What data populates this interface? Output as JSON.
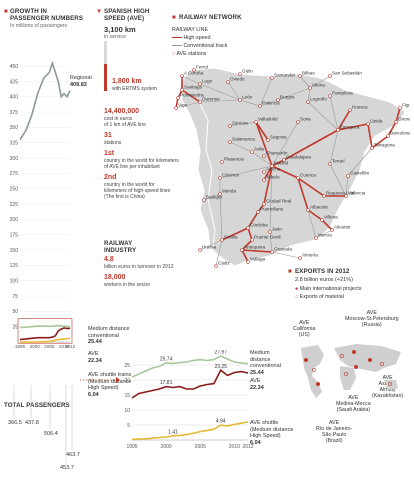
{
  "colors": {
    "accent": "#c0392b",
    "grey_line": "#8a9a90",
    "dark_red": "#8b1a1a",
    "gold": "#e6b833",
    "green": "#a7c79a",
    "map_land": "#d6d6d6",
    "map_sea": "#ffffff"
  },
  "left": {
    "title_line1": "GROWTH IN",
    "title_line2": "PASSENGER NUMBERS",
    "subtitle": "In millions of passengers",
    "regional_label": "Regional",
    "regional_value": "409.83",
    "md_label": "Medium distance",
    "md_label2": "conventional",
    "md_value": "25.44",
    "ave_label": "AVE",
    "ave_value": "22.34",
    "shuttle_label": "AVE shuttle trains",
    "shuttle_label2": "(Medium distance",
    "shuttle_label3": "High Speed)",
    "shuttle_value": "6.04",
    "total_title": "TOTAL PASSENGERS",
    "totals": [
      "366.5",
      "437.8",
      "506.4",
      "453.7",
      "463.7"
    ]
  },
  "chart_data": [
    {
      "type": "line",
      "title": "GROWTH IN PASSENGER NUMBERS",
      "subtitle": "In millions of passengers",
      "x": [
        1995,
        1997,
        1999,
        2001,
        2003,
        2005,
        2006,
        2007,
        2008,
        2009,
        2010,
        2011,
        2012
      ],
      "xticks": [
        "1995",
        "2000",
        "2005",
        "2010",
        "2012"
      ],
      "yticks": [
        25,
        50,
        75,
        100,
        125,
        150,
        175,
        200,
        225,
        250,
        275,
        300,
        325,
        350,
        375,
        400,
        425,
        450
      ],
      "ylim": [
        0,
        460
      ],
      "series": [
        {
          "name": "Regional",
          "values": [
            330,
            345,
            370,
            405,
            430,
            440,
            455,
            440,
            425,
            400,
            405,
            400,
            409.83
          ]
        },
        {
          "name": "Medium distance conventional",
          "values": [
            24,
            24,
            25,
            26,
            26,
            25.5,
            26,
            26,
            27,
            26,
            26,
            25.5,
            25.44
          ]
        },
        {
          "name": "AVE",
          "values": [
            4,
            5,
            6,
            7,
            7,
            7,
            8,
            10,
            18,
            21,
            23,
            22,
            22.34
          ]
        },
        {
          "name": "AVE shuttle trains (Medium distance High Speed)",
          "values": [
            0,
            0,
            0,
            0,
            0.5,
            1,
            2,
            3,
            4,
            4.5,
            5,
            5.5,
            6.04
          ]
        }
      ]
    },
    {
      "type": "line",
      "x": [
        1995,
        1996,
        1997,
        1998,
        1999,
        2000,
        2001,
        2002,
        2003,
        2004,
        2005,
        2006,
        2007,
        2008,
        2009,
        2010,
        2011,
        2012
      ],
      "xticks": [
        "1995",
        "2000",
        "2005",
        "2010",
        "2012"
      ],
      "yticks": [
        5,
        10,
        15,
        20,
        25
      ],
      "ylim": [
        0,
        28
      ],
      "annotations": [
        "25.74",
        "27.97",
        "17.81",
        "23.25",
        "1.41",
        "4.94"
      ],
      "series": [
        {
          "name": "Medium distance conventional",
          "values": [
            21,
            22,
            23,
            24,
            24.5,
            25.74,
            25.5,
            25.8,
            26,
            26.5,
            26.8,
            26.5,
            26.8,
            27.97,
            27,
            26,
            25.7,
            25.44
          ]
        },
        {
          "name": "AVE",
          "values": [
            14,
            15.5,
            16,
            16.5,
            17,
            17.81,
            17.5,
            17.8,
            17,
            17,
            18,
            18.5,
            18.8,
            23.25,
            21.5,
            22.5,
            22.8,
            22.34
          ]
        },
        {
          "name": "AVE shuttle",
          "values": [
            0.2,
            0.3,
            0.4,
            0.6,
            0.8,
            1.0,
            1.41,
            1.5,
            1.8,
            2.3,
            2.8,
            3.2,
            3.6,
            4.94,
            4.7,
            5.2,
            5.6,
            6.04
          ]
        }
      ]
    }
  ],
  "mid": {
    "title_line1": "SPANISH HIGH",
    "title_line2": "SPEED (AVE)",
    "km": "3,100 km",
    "km_sub": "in service",
    "ertms_km": "1,800 km",
    "ertms_sub": "with ERTMS system",
    "cost": "14,400,000",
    "cost_sub1": "cost in euros",
    "cost_sub2": "of 1 km of AVE line",
    "stations": "31",
    "stations_sub": "stations",
    "rank1": "1st",
    "rank1_sub1": "country in the world for kilometers",
    "rank1_sub2": "of AVE line per inhabitant",
    "rank2": "2nd",
    "rank2_sub1": "country in the world for",
    "rank2_sub2": "kilometers of high-speed lines",
    "rank2_sub3": "(The first is  China)",
    "industry_title1": "RAILWAY",
    "industry_title2": "INDUSTRY",
    "turnover": "4.8",
    "turnover_sub": "billion euros in turnover in 2012",
    "workers": "18,000",
    "workers_sub": "workers in the sector"
  },
  "small_chart": {
    "md_label": "Medium",
    "md_label2": "distance",
    "md_label3": "conventional",
    "md_value": "25.44",
    "ave_label": "AVE",
    "ave_value": "22.34",
    "shuttle_label": "AVE shuttle",
    "shuttle_label2": "(Medium distance",
    "shuttle_label3": "High Speed)",
    "shuttle_value": "6.04"
  },
  "map": {
    "title": "RAILWAY NETWORK",
    "legend_title": "RAILWAY LINE",
    "legend_hs": "High-speed",
    "legend_conv": "Conventional track",
    "legend_st": "AVE stations",
    "cities": [
      "A Coruña",
      "Ferrol",
      "Lugo",
      "Santiago",
      "Pontevedra",
      "Vigo",
      "Ourense",
      "Oviedo",
      "Gijón",
      "Santander",
      "Bilbao",
      "San Sebastián",
      "Vitoria",
      "Pamplona",
      "Logroño",
      "Burgos",
      "Palencia",
      "León",
      "Valladolid",
      "Zamora",
      "Salamanca",
      "Segovia",
      "Ávila",
      "Soria",
      "Huesca",
      "Lleida",
      "Zaragoza",
      "Girona",
      "Figueres",
      "Barcelona",
      "Tarragona",
      "Guadalajara",
      "Madrid",
      "Cuenca",
      "Teruel",
      "Castellón",
      "Requena-Utiel",
      "Valencia",
      "Cáceres",
      "Plasencia",
      "Toledo",
      "Chamartín",
      "Atocha",
      "Badajoz",
      "Mérida",
      "Ciudad Real",
      "Puertollano",
      "Albacete",
      "Villena",
      "Alicante",
      "Murcia",
      "Jaén",
      "Córdoba",
      "Sevilla",
      "Huelva",
      "Cádiz",
      "Antequera",
      "Málaga",
      "Puente Genil",
      "Granada",
      "Almería"
    ]
  },
  "exports": {
    "title": "EXPORTS IN 2012",
    "amount": "2.8 billion euros (+21%)",
    "leg1": "Main international projects",
    "leg2": "Exports of material",
    "p1": "AVE",
    "p1b": "California",
    "p1c": "(US)",
    "p2": "AVE",
    "p2b": "Moscow-St.Petersburg",
    "p2c": "(Russia)",
    "p3": "AVE",
    "p3b": "Astana-",
    "p3c": "Almaty",
    "p3d": "(Kazakhstan)",
    "p4": "AVE",
    "p4b": "Medina-Mecca",
    "p4c": "(Saudi Arabia)",
    "p5": "AVE",
    "p5b": "Río de Janeiro-",
    "p5c": "São Paulo",
    "p5d": "(Brazil)"
  }
}
